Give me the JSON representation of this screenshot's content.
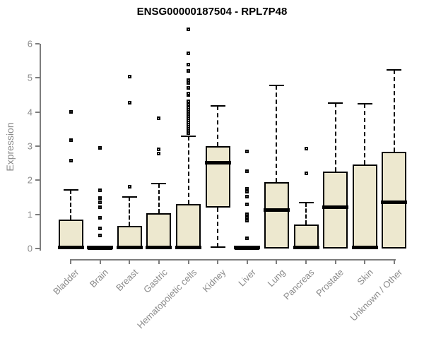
{
  "title": "ENSG00000187504 - RPL7P48",
  "chart_data": {
    "type": "boxplot",
    "title": "ENSG00000187504 - RPL7P48",
    "xlabel": "",
    "ylabel": "Expression",
    "ylim": [
      0,
      6.5
    ],
    "yticks": [
      0,
      1,
      2,
      3,
      4,
      5,
      6
    ],
    "grid": false,
    "legend": false,
    "colors": {
      "box_fill": "#EDE8CF",
      "line": "#000000",
      "axis": "#7d7d7d",
      "tick_label": "#8a8a8a",
      "title": "#000000"
    },
    "categories": [
      "Bladder",
      "Brain",
      "Breast",
      "Gastric",
      "Hematopoietic cells",
      "Kidney",
      "Liver",
      "Lung",
      "Pancreas",
      "Prostate",
      "Skin",
      "Unknown / Other"
    ],
    "series": [
      {
        "category": "Bladder",
        "q1": 0,
        "median": 0.04,
        "q3": 0.85,
        "whisker_low": 0,
        "whisker_high": 1.72,
        "outliers": [
          2.57,
          3.17,
          4.01
        ]
      },
      {
        "category": "Brain",
        "q1": 0,
        "median": 0.03,
        "q3": 0.05,
        "whisker_low": 0,
        "whisker_high": 0.05,
        "outliers": [
          0.39,
          0.6,
          0.91,
          1.22,
          1.35,
          1.48,
          1.7,
          2.95
        ]
      },
      {
        "category": "Breast",
        "q1": 0,
        "median": 0.04,
        "q3": 0.66,
        "whisker_low": 0,
        "whisker_high": 1.51,
        "outliers": [
          1.82,
          4.28,
          5.03
        ]
      },
      {
        "category": "Gastric",
        "q1": 0,
        "median": 0.04,
        "q3": 1.03,
        "whisker_low": 0,
        "whisker_high": 1.9,
        "outliers": [
          2.79,
          2.9,
          3.81
        ]
      },
      {
        "category": "Hematopoietic cells",
        "q1": 0,
        "median": 0.04,
        "q3": 1.3,
        "whisker_low": 0,
        "whisker_high": 3.29,
        "outliers": [
          3.38,
          3.44,
          3.5,
          3.56,
          3.63,
          3.69,
          3.75,
          3.81,
          3.88,
          3.94,
          4.0,
          4.06,
          4.12,
          4.22,
          4.32,
          4.49,
          4.55,
          4.7,
          4.86,
          4.94,
          5.21,
          5.38,
          5.73,
          6.42
        ]
      },
      {
        "category": "Kidney",
        "q1": 1.2,
        "median": 2.52,
        "q3": 3.0,
        "whisker_low": 0.05,
        "whisker_high": 4.18,
        "outliers": []
      },
      {
        "category": "Liver",
        "q1": 0,
        "median": 0.03,
        "q3": 0.05,
        "whisker_low": 0,
        "whisker_high": 0.05,
        "outliers": [
          0.29,
          0.81,
          0.91,
          1.01,
          1.3,
          1.53,
          1.66,
          1.74,
          2.26,
          2.85
        ]
      },
      {
        "category": "Lung",
        "q1": 0,
        "median": 1.13,
        "q3": 1.95,
        "whisker_low": 0,
        "whisker_high": 4.78,
        "outliers": []
      },
      {
        "category": "Pancreas",
        "q1": 0,
        "median": 0.04,
        "q3": 0.7,
        "whisker_low": 0,
        "whisker_high": 1.35,
        "outliers": [
          2.21,
          2.92
        ]
      },
      {
        "category": "Prostate",
        "q1": 0,
        "median": 1.22,
        "q3": 2.25,
        "whisker_low": 0,
        "whisker_high": 4.27,
        "outliers": []
      },
      {
        "category": "Skin",
        "q1": 0,
        "median": 0.04,
        "q3": 2.46,
        "whisker_low": 0,
        "whisker_high": 4.24,
        "outliers": []
      },
      {
        "category": "Unknown / Other",
        "q1": 0,
        "median": 1.35,
        "q3": 2.84,
        "whisker_low": 0,
        "whisker_high": 5.23,
        "outliers": []
      }
    ]
  }
}
